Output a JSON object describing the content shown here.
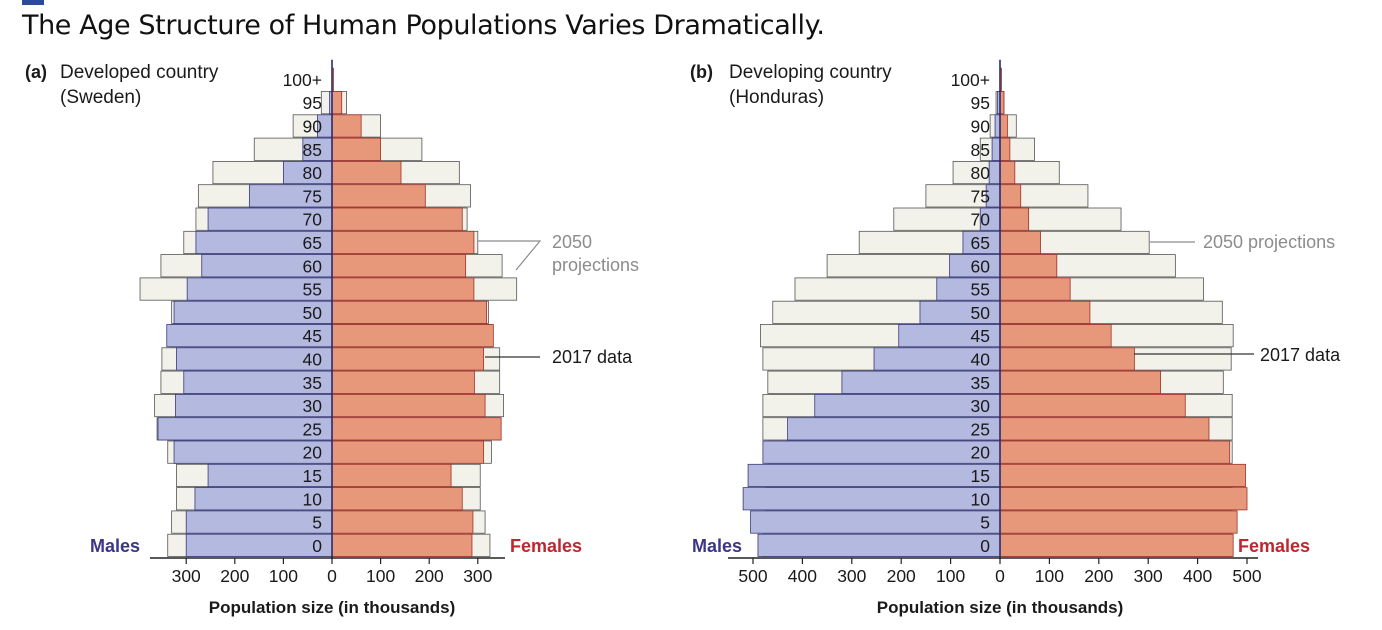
{
  "title": "The Age Structure of Human Populations Varies Dramatically.",
  "colors": {
    "male": "#b3b9df",
    "female": "#e7977a",
    "projection_fill": "#f2f2ea",
    "male_text": "#3b3685",
    "female_text": "#c0262e",
    "callout": "#8c8c8c",
    "axis": "#2a2a6a"
  },
  "chart_data": [
    {
      "type": "bar",
      "panel_label": "(a)",
      "subtitle_line1": "Developed country",
      "subtitle_line2": "(Sweden)",
      "xlabel": "Population size (in thousands)",
      "left_label": "Males",
      "right_label": "Females",
      "xlim": [
        -355,
        355
      ],
      "xticks": [
        -300,
        -200,
        -100,
        0,
        100,
        200,
        300
      ],
      "xtick_labels": [
        "300",
        "200",
        "100",
        "0",
        "100",
        "200",
        "300"
      ],
      "categories": [
        "0",
        "5",
        "10",
        "15",
        "20",
        "25",
        "30",
        "35",
        "40",
        "45",
        "50",
        "55",
        "60",
        "65",
        "70",
        "75",
        "80",
        "85",
        "90",
        "95",
        "100+"
      ],
      "series": [
        {
          "name": "2050 projections",
          "values_male": [
            338,
            330,
            320,
            320,
            338,
            360,
            365,
            352,
            350,
            332,
            330,
            395,
            352,
            305,
            280,
            275,
            245,
            160,
            80,
            22,
            0
          ],
          "values_female": [
            325,
            315,
            305,
            305,
            328,
            348,
            353,
            345,
            345,
            330,
            322,
            380,
            350,
            300,
            278,
            285,
            262,
            185,
            100,
            30,
            0
          ]
        },
        {
          "name": "2017 data",
          "values_male": [
            300,
            300,
            282,
            255,
            325,
            358,
            322,
            305,
            320,
            340,
            325,
            298,
            268,
            280,
            255,
            170,
            100,
            60,
            30,
            5,
            0
          ],
          "values_female": [
            288,
            290,
            268,
            245,
            312,
            348,
            315,
            293,
            312,
            332,
            318,
            292,
            275,
            292,
            268,
            192,
            142,
            100,
            60,
            20,
            3
          ]
        }
      ],
      "callouts": [
        "2050",
        "projections",
        "2017 data"
      ]
    },
    {
      "type": "bar",
      "panel_label": "(b)",
      "subtitle_line1": "Developing country",
      "subtitle_line2": "(Honduras)",
      "xlabel": "Population size (in thousands)",
      "left_label": "Males",
      "right_label": "Females",
      "xlim": [
        -520,
        520
      ],
      "xticks": [
        -500,
        -400,
        -300,
        -200,
        -100,
        0,
        100,
        200,
        300,
        400,
        500
      ],
      "xtick_labels": [
        "500",
        "400",
        "300",
        "200",
        "100",
        "0",
        "100",
        "200",
        "300",
        "400",
        "500"
      ],
      "categories": [
        "0",
        "5",
        "10",
        "15",
        "20",
        "25",
        "30",
        "35",
        "40",
        "45",
        "50",
        "55",
        "60",
        "65",
        "70",
        "75",
        "80",
        "85",
        "90",
        "95",
        "100+"
      ],
      "series": [
        {
          "name": "2050 projections",
          "values_male": [
            480,
            480,
            475,
            475,
            470,
            480,
            480,
            470,
            480,
            485,
            460,
            415,
            350,
            285,
            215,
            150,
            95,
            40,
            20,
            8,
            0
          ],
          "values_female": [
            470,
            470,
            470,
            470,
            470,
            470,
            470,
            452,
            468,
            472,
            450,
            412,
            355,
            302,
            245,
            178,
            120,
            70,
            33,
            8,
            0
          ]
        },
        {
          "name": "2017 data",
          "values_male": [
            490,
            505,
            520,
            510,
            480,
            430,
            375,
            320,
            255,
            205,
            162,
            128,
            102,
            75,
            40,
            28,
            22,
            16,
            10,
            5,
            0
          ],
          "values_female": [
            472,
            480,
            500,
            497,
            465,
            423,
            375,
            325,
            272,
            225,
            182,
            142,
            115,
            82,
            58,
            42,
            30,
            20,
            15,
            8,
            3
          ]
        }
      ],
      "callouts": [
        "2050 projections",
        "2017 data"
      ]
    }
  ]
}
